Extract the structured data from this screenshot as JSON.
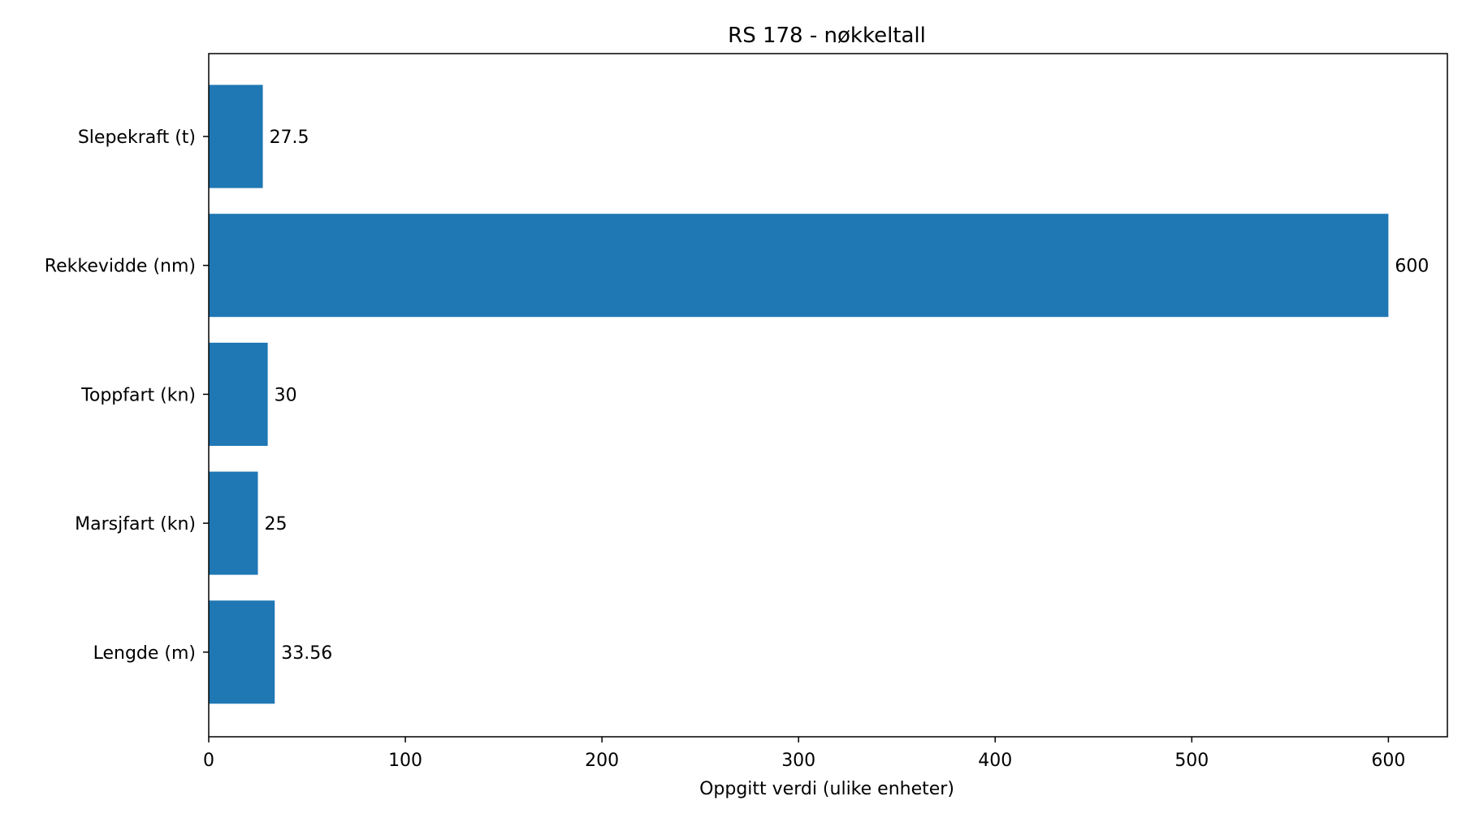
{
  "chart_data": {
    "type": "bar",
    "orientation": "horizontal",
    "title": "RS 178 - nøkkeltall",
    "xlabel": "Oppgitt verdi (ulike enheter)",
    "ylabel": "",
    "categories": [
      "Slepekraft (t)",
      "Rekkevidde (nm)",
      "Toppfart (kn)",
      "Marsjfart (kn)",
      "Lengde (m)"
    ],
    "values": [
      27.5,
      600,
      30,
      25,
      33.56
    ],
    "value_labels": [
      "27.5",
      "600",
      "30",
      "25",
      "33.56"
    ],
    "xlim": [
      0,
      630
    ],
    "xticks": [
      0,
      100,
      200,
      300,
      400,
      500,
      600
    ],
    "xtick_labels": [
      "0",
      "100",
      "200",
      "300",
      "400",
      "500",
      "600"
    ],
    "grid": false,
    "legend": "none",
    "bar_color": "#1f77b4"
  }
}
